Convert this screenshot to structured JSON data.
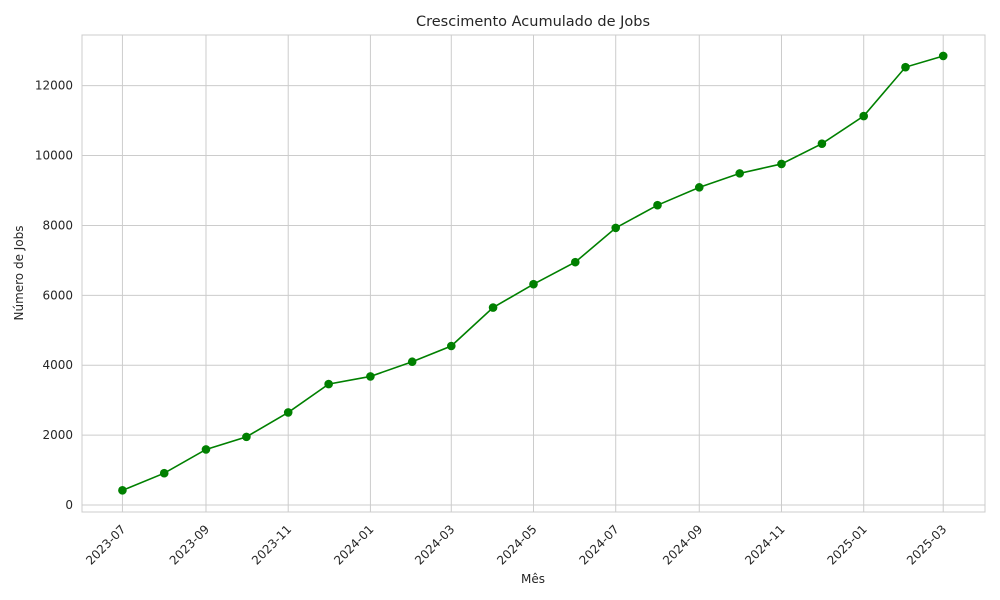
{
  "chart_data": {
    "type": "line",
    "title": "Crescimento Acumulado de Jobs",
    "xlabel": "Mês",
    "ylabel": "Número de Jobs",
    "grid": true,
    "legend": "none",
    "x": [
      "2023-07-01",
      "2023-08-01",
      "2023-09-01",
      "2023-10-01",
      "2023-11-01",
      "2023-12-01",
      "2024-01-01",
      "2024-02-01",
      "2024-03-01",
      "2024-04-01",
      "2024-05-01",
      "2024-06-01",
      "2024-07-01",
      "2024-08-01",
      "2024-09-01",
      "2024-10-01",
      "2024-11-01",
      "2024-12-01",
      "2025-01-01",
      "2025-02-01",
      "2025-03-01"
    ],
    "series": [
      {
        "color": "#008000",
        "marker": "circle",
        "values": [
          420,
          910,
          1590,
          1950,
          2650,
          3460,
          3680,
          4100,
          4550,
          5650,
          6320,
          6950,
          7930,
          8580,
          9090,
          9490,
          9760,
          10340,
          11130,
          12530,
          12850
        ]
      }
    ],
    "xticks": [
      "2023-07",
      "2023-09",
      "2023-11",
      "2024-01",
      "2024-03",
      "2024-05",
      "2024-07",
      "2024-09",
      "2024-11",
      "2025-01",
      "2025-03"
    ],
    "yticks": [
      0,
      2000,
      4000,
      6000,
      8000,
      10000,
      12000
    ],
    "ylim": [
      -200,
      13450
    ],
    "xlim": [
      "2023-06-01",
      "2025-04-01"
    ]
  }
}
